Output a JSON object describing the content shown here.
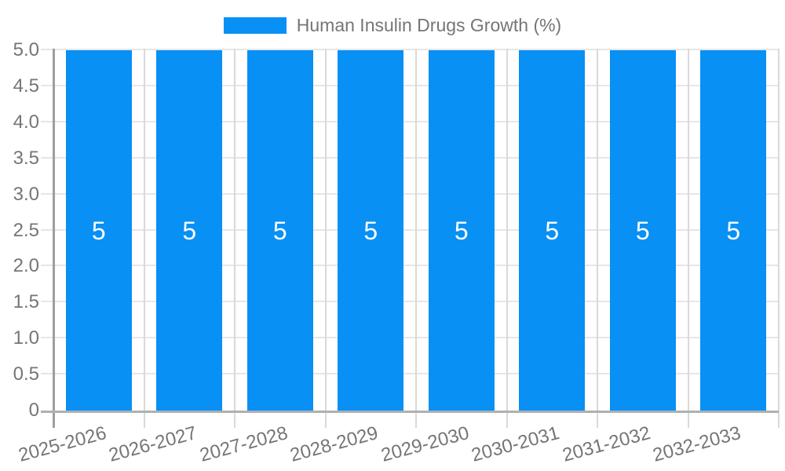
{
  "chart_data": {
    "type": "bar",
    "legend": {
      "position": "top",
      "label": "Human Insulin Drugs Growth (%)"
    },
    "categories": [
      "2025-2026",
      "2026-2027",
      "2027-2028",
      "2028-2029",
      "2029-2030",
      "2030-2031",
      "2031-2032",
      "2032-2033"
    ],
    "series": [
      {
        "name": "Human Insulin Drugs Growth (%)",
        "values": [
          5,
          5,
          5,
          5,
          5,
          5,
          5,
          5
        ]
      }
    ],
    "bar_value_labels": [
      "5",
      "5",
      "5",
      "5",
      "5",
      "5",
      "5",
      "5"
    ],
    "xlabel": "",
    "ylabel": "",
    "ylim": [
      0,
      5
    ],
    "y_tick_labels": [
      "5.0",
      "4.5",
      "4.0",
      "3.5",
      "3.0",
      "2.5",
      "2.0",
      "1.5",
      "1.0",
      "0.5",
      "0"
    ],
    "grid": true,
    "colors": {
      "bar": "#0890f5",
      "axis_text": "#757575",
      "legend_text": "#757575",
      "gridline": "#e6e6e6",
      "v_gridline": "#d9d9d9",
      "y_axis_line": "#9e9e9e",
      "x_axis_line": "#b0b0b0",
      "bar_label": "#ffffff",
      "background": "#ffffff"
    }
  }
}
